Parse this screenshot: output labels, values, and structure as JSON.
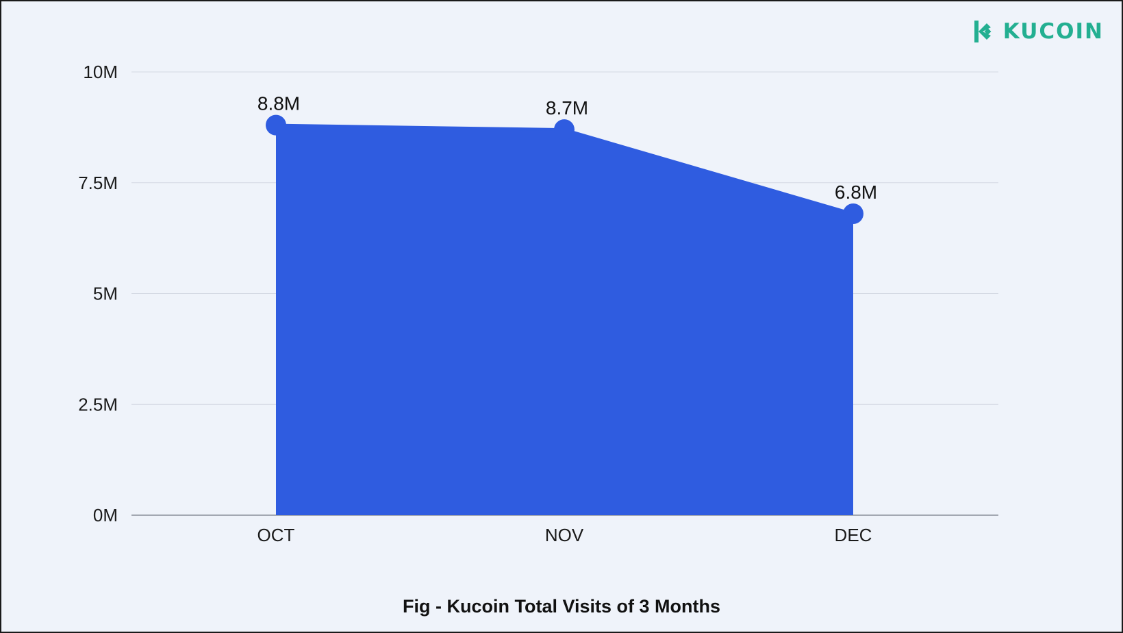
{
  "brand": {
    "name": "KUCOIN",
    "color": "#23af91",
    "icon": "kucoin-logo-icon"
  },
  "caption": "Fig - Kucoin Total Visits of 3 Months",
  "chart_data": {
    "type": "area",
    "categories": [
      "OCT",
      "NOV",
      "DEC"
    ],
    "values": [
      8.8,
      8.7,
      6.8
    ],
    "unit": "M",
    "data_labels": [
      "8.8M",
      "8.7M",
      "6.8M"
    ],
    "yticks": [
      0,
      2.5,
      5,
      7.5,
      10
    ],
    "ytick_labels": [
      "0M",
      "2.5M",
      "5M",
      "7.5M",
      "10M"
    ],
    "ylim": [
      0,
      10
    ],
    "grid": true,
    "legend": "none",
    "fill_color": "#2f5ce0"
  }
}
